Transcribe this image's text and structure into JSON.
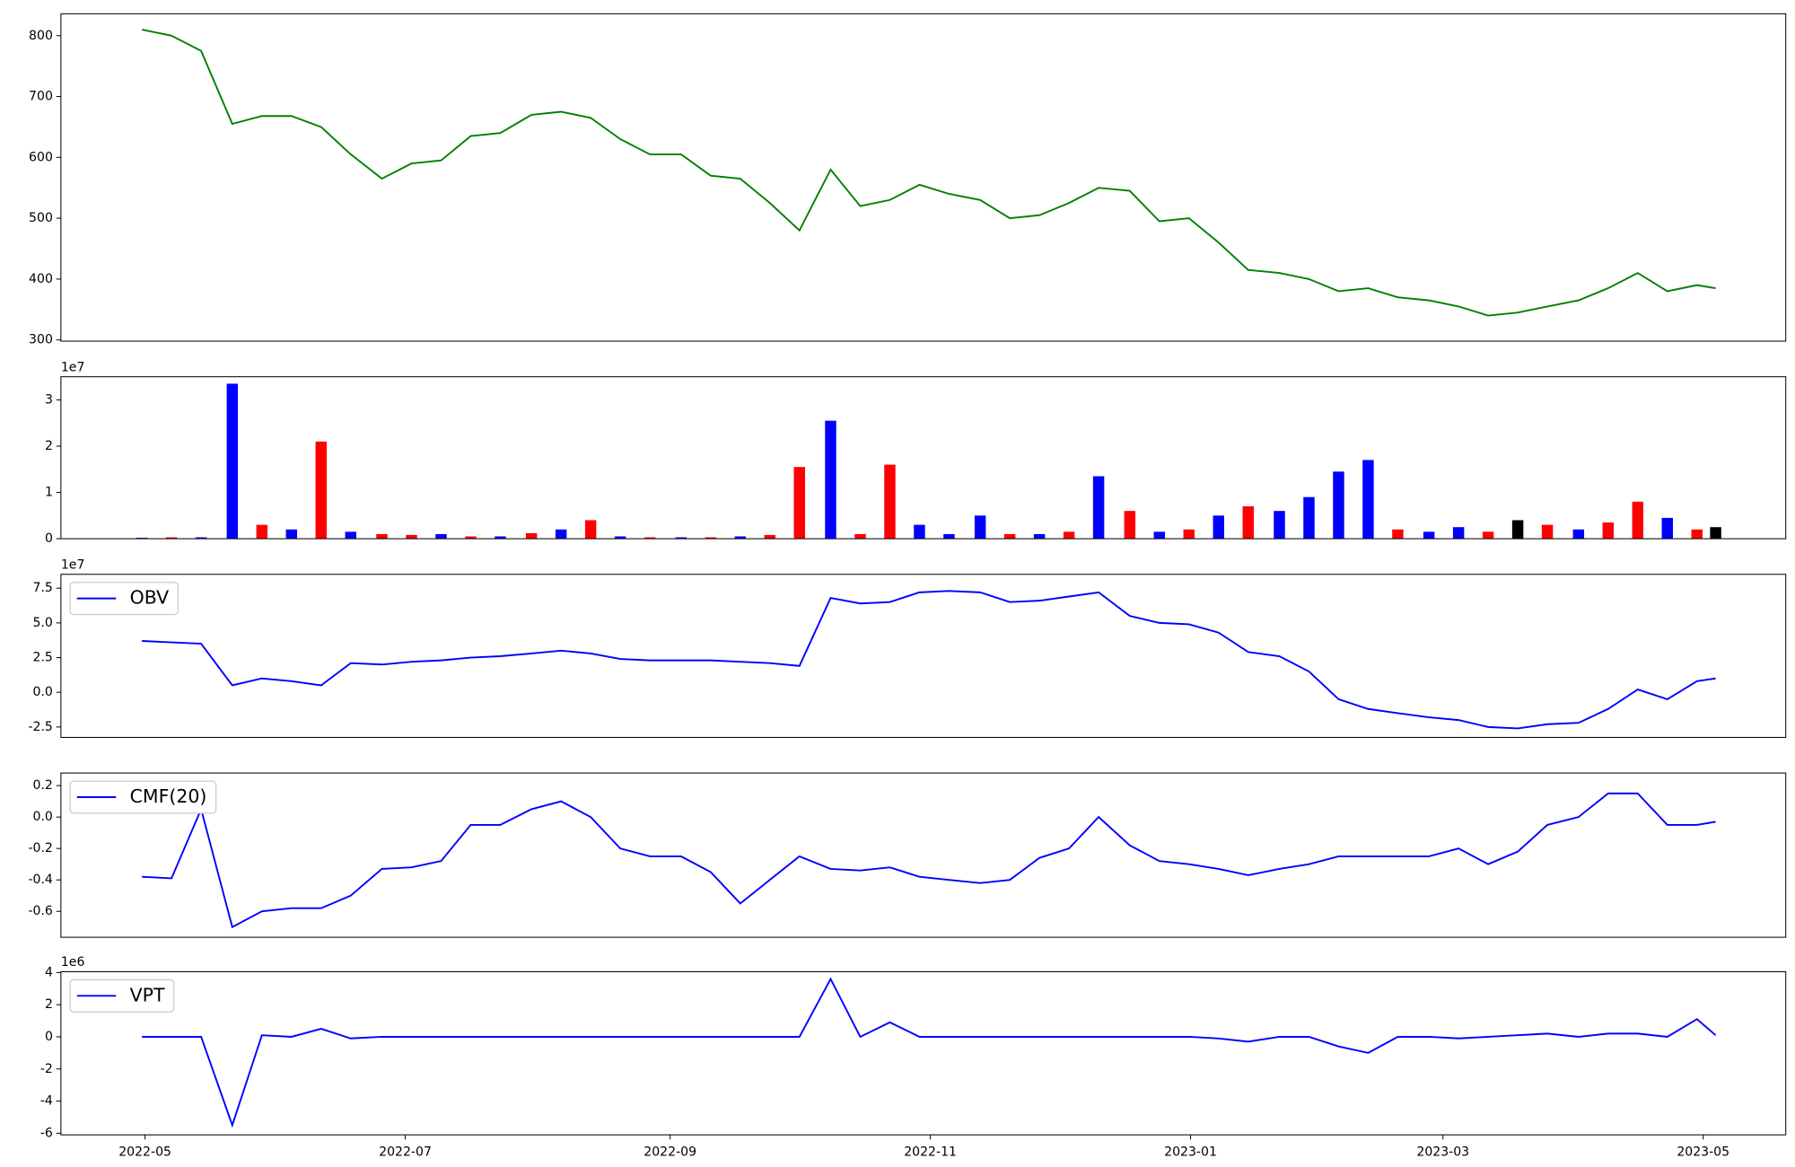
{
  "chart_data": [
    {
      "type": "line",
      "x": [
        2022.327,
        2022.346,
        2022.365,
        2022.385,
        2022.404,
        2022.423,
        2022.442,
        2022.461,
        2022.481,
        2022.5,
        2022.519,
        2022.538,
        2022.557,
        2022.577,
        2022.596,
        2022.615,
        2022.634,
        2022.653,
        2022.673,
        2022.692,
        2022.711,
        2022.73,
        2022.749,
        2022.769,
        2022.788,
        2022.807,
        2022.826,
        2022.845,
        2022.865,
        2022.884,
        2022.903,
        2022.922,
        2022.941,
        2022.961,
        2022.98,
        2022.999,
        2023.018,
        2023.037,
        2023.057,
        2023.076,
        2023.095,
        2023.114,
        2023.133,
        2023.153,
        2023.172,
        2023.191,
        2023.21,
        2023.229,
        2023.249,
        2023.268,
        2023.287,
        2023.306,
        2023.325,
        2023.337
      ],
      "series": [
        {
          "color": "green",
          "values": [
            810,
            800,
            775,
            655,
            668,
            668,
            650,
            605,
            565,
            590,
            595,
            635,
            640,
            670,
            675,
            665,
            630,
            605,
            605,
            570,
            565,
            525,
            480,
            580,
            520,
            530,
            555,
            540,
            530,
            500,
            505,
            525,
            550,
            545,
            495,
            500,
            460,
            415,
            410,
            400,
            380,
            385,
            370,
            365,
            355,
            340,
            345,
            355,
            365,
            385,
            410,
            380,
            390,
            385
          ]
        }
      ],
      "xlim": [
        2022.275,
        2023.382
      ],
      "ylim": [
        298,
        836
      ],
      "yticks": [
        300,
        400,
        500,
        600,
        700,
        800
      ]
    },
    {
      "type": "bar",
      "x": [
        2022.327,
        2022.346,
        2022.365,
        2022.385,
        2022.404,
        2022.423,
        2022.442,
        2022.461,
        2022.481,
        2022.5,
        2022.519,
        2022.538,
        2022.557,
        2022.577,
        2022.596,
        2022.615,
        2022.634,
        2022.653,
        2022.673,
        2022.692,
        2022.711,
        2022.73,
        2022.749,
        2022.769,
        2022.788,
        2022.807,
        2022.826,
        2022.845,
        2022.865,
        2022.884,
        2022.903,
        2022.922,
        2022.941,
        2022.961,
        2022.98,
        2022.999,
        2023.018,
        2023.037,
        2023.057,
        2023.076,
        2023.095,
        2023.114,
        2023.133,
        2023.153,
        2023.172,
        2023.191,
        2023.21,
        2023.229,
        2023.249,
        2023.268,
        2023.287,
        2023.306,
        2023.325,
        2023.337
      ],
      "values": [
        0.02,
        0.03,
        0.03,
        3.35,
        0.3,
        0.2,
        2.1,
        0.15,
        0.1,
        0.08,
        0.1,
        0.05,
        0.05,
        0.12,
        0.2,
        0.4,
        0.05,
        0.03,
        0.03,
        0.03,
        0.05,
        0.08,
        1.55,
        2.55,
        0.1,
        1.6,
        0.3,
        0.1,
        0.5,
        0.1,
        0.1,
        0.15,
        1.35,
        0.6,
        0.15,
        0.2,
        0.5,
        0.7,
        0.6,
        0.9,
        1.45,
        1.7,
        0.2,
        0.15,
        0.25,
        0.15,
        0.4,
        0.3,
        0.2,
        0.35,
        0.8,
        0.45,
        0.2,
        0.25
      ],
      "colors": [
        "blue",
        "red",
        "blue",
        "blue",
        "red",
        "blue",
        "red",
        "blue",
        "red",
        "red",
        "blue",
        "red",
        "blue",
        "red",
        "blue",
        "red",
        "blue",
        "red",
        "blue",
        "red",
        "blue",
        "red",
        "red",
        "blue",
        "red",
        "red",
        "blue",
        "blue",
        "blue",
        "red",
        "blue",
        "red",
        "blue",
        "red",
        "blue",
        "red",
        "blue",
        "red",
        "blue",
        "blue",
        "blue",
        "blue",
        "red",
        "blue",
        "blue",
        "red",
        "black",
        "red",
        "blue",
        "red",
        "red",
        "blue",
        "red",
        "black"
      ],
      "xlim": [
        2022.275,
        2023.382
      ],
      "ylim": [
        0,
        3.5
      ],
      "yticks": [
        0,
        1,
        2,
        3
      ],
      "offset_label": "1e7"
    },
    {
      "type": "line",
      "x": [
        2022.327,
        2022.346,
        2022.365,
        2022.385,
        2022.404,
        2022.423,
        2022.442,
        2022.461,
        2022.481,
        2022.5,
        2022.519,
        2022.538,
        2022.557,
        2022.577,
        2022.596,
        2022.615,
        2022.634,
        2022.653,
        2022.673,
        2022.692,
        2022.711,
        2022.73,
        2022.749,
        2022.769,
        2022.788,
        2022.807,
        2022.826,
        2022.845,
        2022.865,
        2022.884,
        2022.903,
        2022.922,
        2022.941,
        2022.961,
        2022.98,
        2022.999,
        2023.018,
        2023.037,
        2023.057,
        2023.076,
        2023.095,
        2023.114,
        2023.133,
        2023.153,
        2023.172,
        2023.191,
        2023.21,
        2023.229,
        2023.249,
        2023.268,
        2023.287,
        2023.306,
        2023.325,
        2023.337
      ],
      "series": [
        {
          "name": "OBV",
          "color": "blue",
          "values": [
            3.7,
            3.6,
            3.5,
            0.5,
            1.0,
            0.8,
            0.5,
            2.1,
            2.0,
            2.2,
            2.3,
            2.5,
            2.6,
            2.8,
            3.0,
            2.8,
            2.4,
            2.3,
            2.3,
            2.3,
            2.2,
            2.1,
            1.9,
            6.8,
            6.4,
            6.5,
            7.2,
            7.3,
            7.2,
            6.5,
            6.6,
            6.9,
            7.2,
            5.5,
            5.0,
            4.9,
            4.3,
            2.9,
            2.6,
            1.5,
            -0.5,
            -1.2,
            -1.5,
            -1.8,
            -2.0,
            -2.5,
            -2.6,
            -2.3,
            -2.2,
            -1.2,
            0.2,
            -0.5,
            0.8,
            1.0
          ]
        }
      ],
      "xlim": [
        2022.275,
        2023.382
      ],
      "ylim": [
        -3.25,
        8.5
      ],
      "yticks": [
        -2.5,
        {
          "value": 0,
          "label": "0.0"
        },
        2.5,
        {
          "value": 5,
          "label": "5.0"
        },
        7.5
      ],
      "offset_label": "1e7",
      "legend": "upper left"
    },
    {
      "type": "line",
      "x": [
        2022.327,
        2022.346,
        2022.365,
        2022.385,
        2022.404,
        2022.423,
        2022.442,
        2022.461,
        2022.481,
        2022.5,
        2022.519,
        2022.538,
        2022.557,
        2022.577,
        2022.596,
        2022.615,
        2022.634,
        2022.653,
        2022.673,
        2022.692,
        2022.711,
        2022.73,
        2022.749,
        2022.769,
        2022.788,
        2022.807,
        2022.826,
        2022.845,
        2022.865,
        2022.884,
        2022.903,
        2022.922,
        2022.941,
        2022.961,
        2022.98,
        2022.999,
        2023.018,
        2023.037,
        2023.057,
        2023.076,
        2023.095,
        2023.114,
        2023.133,
        2023.153,
        2023.172,
        2023.191,
        2023.21,
        2023.229,
        2023.249,
        2023.268,
        2023.287,
        2023.306,
        2023.325,
        2023.337
      ],
      "series": [
        {
          "name": "CMF(20)",
          "color": "blue",
          "values": [
            -0.38,
            -0.39,
            0.05,
            -0.7,
            -0.6,
            -0.58,
            -0.58,
            -0.5,
            -0.33,
            -0.32,
            -0.28,
            -0.05,
            -0.05,
            0.05,
            0.1,
            0.0,
            -0.2,
            -0.25,
            -0.25,
            -0.35,
            -0.55,
            -0.4,
            -0.25,
            -0.33,
            -0.34,
            -0.32,
            -0.38,
            -0.4,
            -0.42,
            -0.4,
            -0.26,
            -0.2,
            0.0,
            -0.18,
            -0.28,
            -0.3,
            -0.33,
            -0.37,
            -0.33,
            -0.3,
            -0.25,
            -0.25,
            -0.25,
            -0.25,
            -0.2,
            -0.3,
            -0.22,
            -0.05,
            0.0,
            0.15,
            0.15,
            -0.05,
            -0.05,
            -0.03
          ]
        }
      ],
      "xlim": [
        2022.275,
        2023.382
      ],
      "ylim": [
        -0.765,
        0.28
      ],
      "yticks": [
        -0.6,
        -0.4,
        -0.2,
        {
          "value": 0,
          "label": "0.0"
        },
        0.2
      ],
      "legend": "upper left"
    },
    {
      "type": "line",
      "x": [
        2022.327,
        2022.346,
        2022.365,
        2022.385,
        2022.404,
        2022.423,
        2022.442,
        2022.461,
        2022.481,
        2022.5,
        2022.519,
        2022.538,
        2022.557,
        2022.577,
        2022.596,
        2022.615,
        2022.634,
        2022.653,
        2022.673,
        2022.692,
        2022.711,
        2022.73,
        2022.749,
        2022.769,
        2022.788,
        2022.807,
        2022.826,
        2022.845,
        2022.865,
        2022.884,
        2022.903,
        2022.922,
        2022.941,
        2022.961,
        2022.98,
        2022.999,
        2023.018,
        2023.037,
        2023.057,
        2023.076,
        2023.095,
        2023.114,
        2023.133,
        2023.153,
        2023.172,
        2023.191,
        2023.21,
        2023.229,
        2023.249,
        2023.268,
        2023.287,
        2023.306,
        2023.325,
        2023.337
      ],
      "series": [
        {
          "name": "VPT",
          "color": "blue",
          "values": [
            0,
            0,
            0,
            -5.5,
            0.1,
            0,
            0.5,
            -0.1,
            0,
            0,
            0,
            0,
            0,
            0,
            0,
            0,
            0,
            0,
            0,
            0,
            0,
            0,
            0,
            3.6,
            0,
            0.9,
            0,
            0,
            0,
            0,
            0,
            0,
            0,
            0,
            0,
            0,
            -0.1,
            -0.3,
            0,
            0,
            -0.6,
            -1.0,
            0,
            0,
            -0.1,
            0,
            0.1,
            0.2,
            0,
            0.2,
            0.2,
            0,
            1.1,
            0.1
          ]
        }
      ],
      "xlim": [
        2022.275,
        2023.382
      ],
      "ylim": [
        -6.1,
        4.05
      ],
      "yticks": [
        -6,
        -4,
        -2,
        0,
        2,
        4
      ],
      "xticks": [
        {
          "value": 2022.329,
          "label": "2022-05"
        },
        {
          "value": 2022.496,
          "label": "2022-07"
        },
        {
          "value": 2022.666,
          "label": "2022-09"
        },
        {
          "value": 2022.833,
          "label": "2022-11"
        },
        {
          "value": 2023.0,
          "label": "2023-01"
        },
        {
          "value": 2023.162,
          "label": "2023-03"
        },
        {
          "value": 2023.329,
          "label": "2023-05"
        }
      ],
      "offset_label": "1e6",
      "legend": "upper left"
    }
  ]
}
